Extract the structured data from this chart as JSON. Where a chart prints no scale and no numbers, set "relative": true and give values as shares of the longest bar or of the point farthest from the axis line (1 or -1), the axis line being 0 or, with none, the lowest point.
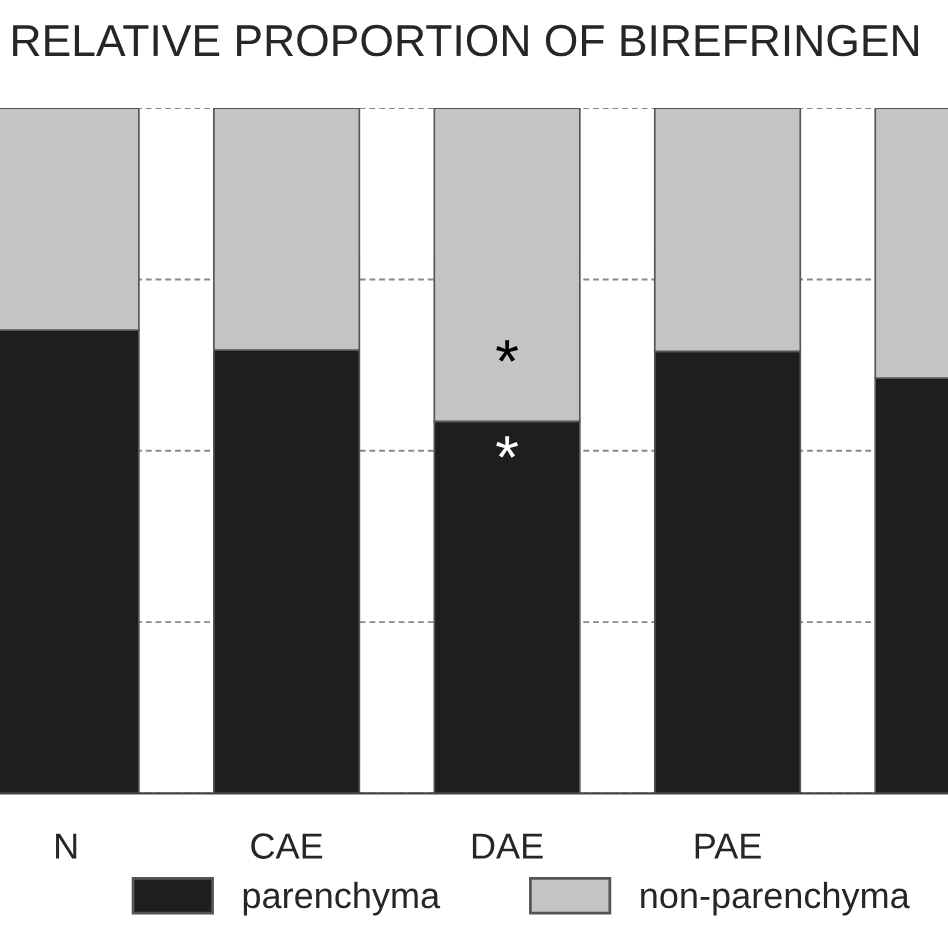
{
  "chart_data": {
    "type": "bar",
    "title": "RELATIVE PROPORTION OF BIREFRINGEN",
    "categories": [
      "N",
      "CAE",
      "DAE",
      "PAE",
      null
    ],
    "stacked": true,
    "relative": true,
    "series": [
      {
        "name": "parenchyma",
        "color": "#1e1e1e",
        "values": [
          0.676,
          0.647,
          0.543,
          0.645,
          0.606
        ]
      },
      {
        "name": "non-parenchyma",
        "color": "#c4c4c4",
        "values": [
          0.324,
          0.353,
          0.457,
          0.355,
          0.394
        ]
      }
    ],
    "annotations": [
      "*",
      "*"
    ],
    "grid": "y",
    "legend": "bottom"
  }
}
